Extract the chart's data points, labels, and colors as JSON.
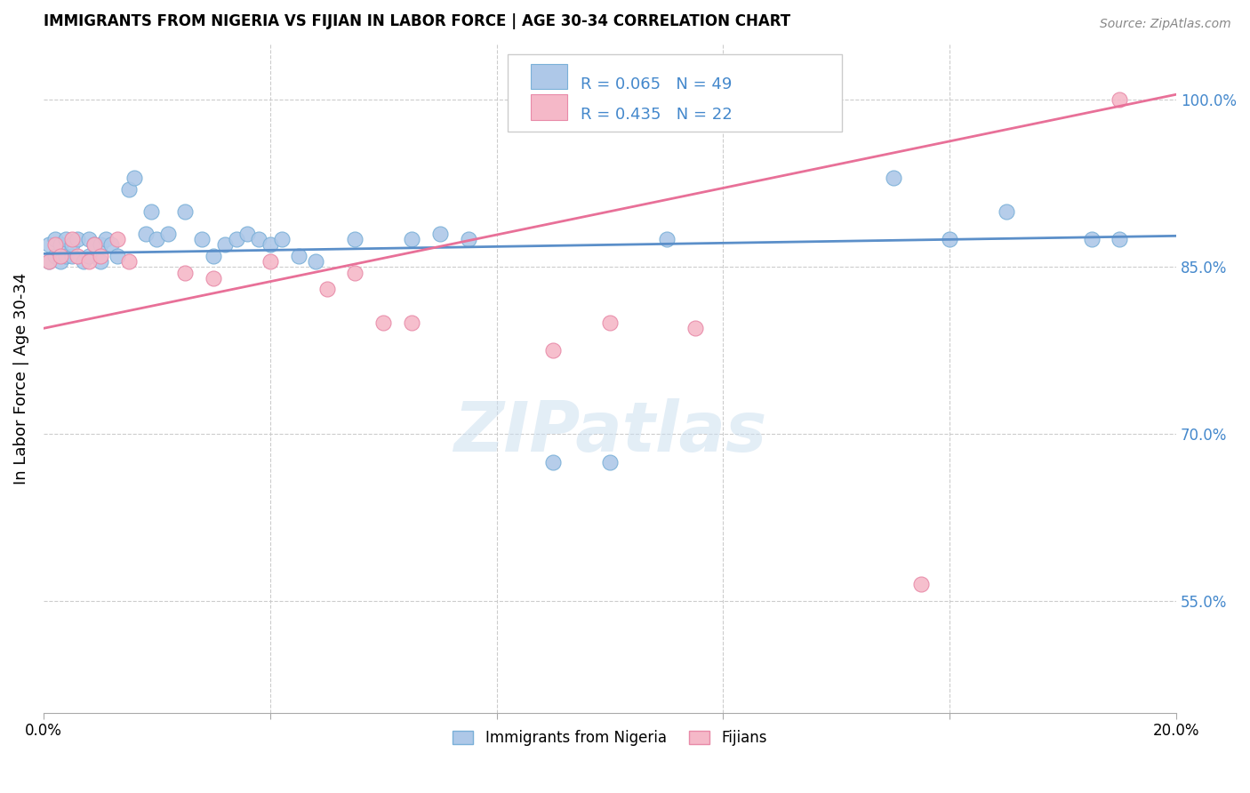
{
  "title": "IMMIGRANTS FROM NIGERIA VS FIJIAN IN LABOR FORCE | AGE 30-34 CORRELATION CHART",
  "source": "Source: ZipAtlas.com",
  "ylabel": "In Labor Force | Age 30-34",
  "x_min": 0.0,
  "x_max": 0.2,
  "y_min": 0.45,
  "y_max": 1.05,
  "y_ticks": [
    0.55,
    0.7,
    0.85,
    1.0
  ],
  "y_tick_labels": [
    "55.0%",
    "70.0%",
    "85.0%",
    "100.0%"
  ],
  "x_ticks": [
    0.0,
    0.04,
    0.08,
    0.12,
    0.16,
    0.2
  ],
  "x_tick_labels": [
    "0.0%",
    "",
    "",
    "",
    "",
    "20.0%"
  ],
  "nigeria_R": 0.065,
  "nigeria_N": 49,
  "fijian_R": 0.435,
  "fijian_N": 22,
  "nigeria_color": "#aec8e8",
  "nigeria_edge_color": "#7ab0d8",
  "fijian_color": "#f5b8c8",
  "fijian_edge_color": "#e88aa8",
  "nigeria_line_color": "#5b8fc9",
  "fijian_line_color": "#e87098",
  "nigeria_x": [
    0.001,
    0.001,
    0.002,
    0.002,
    0.003,
    0.003,
    0.004,
    0.004,
    0.005,
    0.005,
    0.006,
    0.007,
    0.008,
    0.008,
    0.009,
    0.01,
    0.01,
    0.011,
    0.012,
    0.013,
    0.015,
    0.016,
    0.018,
    0.019,
    0.02,
    0.022,
    0.025,
    0.028,
    0.03,
    0.032,
    0.034,
    0.036,
    0.038,
    0.04,
    0.042,
    0.045,
    0.048,
    0.055,
    0.065,
    0.07,
    0.075,
    0.09,
    0.1,
    0.11,
    0.15,
    0.16,
    0.17,
    0.185,
    0.19
  ],
  "nigeria_y": [
    0.855,
    0.87,
    0.86,
    0.875,
    0.855,
    0.87,
    0.86,
    0.875,
    0.86,
    0.87,
    0.875,
    0.855,
    0.86,
    0.875,
    0.87,
    0.855,
    0.87,
    0.875,
    0.87,
    0.86,
    0.92,
    0.93,
    0.88,
    0.9,
    0.875,
    0.88,
    0.9,
    0.875,
    0.86,
    0.87,
    0.875,
    0.88,
    0.875,
    0.87,
    0.875,
    0.86,
    0.855,
    0.875,
    0.875,
    0.88,
    0.875,
    0.675,
    0.675,
    0.875,
    0.93,
    0.875,
    0.9,
    0.875,
    0.875
  ],
  "fijian_x": [
    0.001,
    0.002,
    0.003,
    0.005,
    0.006,
    0.008,
    0.009,
    0.01,
    0.013,
    0.015,
    0.025,
    0.03,
    0.04,
    0.05,
    0.055,
    0.06,
    0.065,
    0.09,
    0.1,
    0.115,
    0.155,
    0.19
  ],
  "fijian_y": [
    0.855,
    0.87,
    0.86,
    0.875,
    0.86,
    0.855,
    0.87,
    0.86,
    0.875,
    0.855,
    0.845,
    0.84,
    0.855,
    0.83,
    0.845,
    0.8,
    0.8,
    0.775,
    0.8,
    0.795,
    0.565,
    1.0
  ],
  "nigeria_line_x0": 0.0,
  "nigeria_line_x1": 0.2,
  "nigeria_line_y0": 0.862,
  "nigeria_line_y1": 0.878,
  "fijian_line_x0": 0.0,
  "fijian_line_x1": 0.2,
  "fijian_line_y0": 0.795,
  "fijian_line_y1": 1.005,
  "watermark": "ZIPatlas",
  "legend_labels": [
    "Immigrants from Nigeria",
    "Fijians"
  ]
}
